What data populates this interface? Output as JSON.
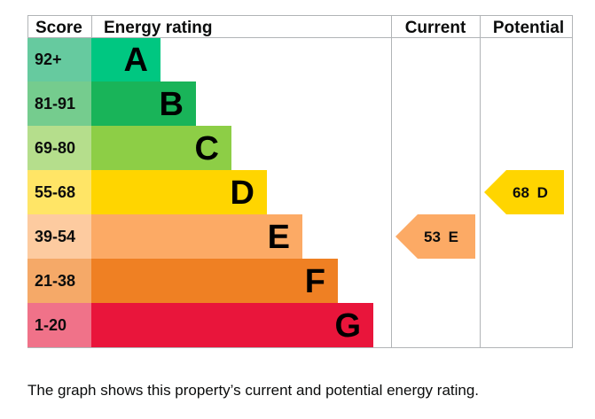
{
  "header": {
    "score_label": "Score",
    "rating_label": "Energy rating",
    "current_label": "Current",
    "potential_label": "Potential"
  },
  "bands": [
    {
      "letter": "A",
      "score": "92+",
      "color": "#00c781",
      "score_bg": "#66ca9f"
    },
    {
      "letter": "B",
      "score": "81-91",
      "color": "#19b459",
      "score_bg": "#75cc8e"
    },
    {
      "letter": "C",
      "score": "69-80",
      "color": "#8dce46",
      "score_bg": "#b5de8c"
    },
    {
      "letter": "D",
      "score": "55-68",
      "color": "#ffd500",
      "score_bg": "#ffe566"
    },
    {
      "letter": "E",
      "score": "39-54",
      "color": "#fcaa65",
      "score_bg": "#fdcba0"
    },
    {
      "letter": "F",
      "score": "21-38",
      "color": "#ef8023",
      "score_bg": "#f5a968"
    },
    {
      "letter": "G",
      "score": "1-20",
      "color": "#e9153b",
      "score_bg": "#f07289"
    }
  ],
  "chart_data": {
    "type": "bar",
    "categories": [
      "A",
      "B",
      "C",
      "D",
      "E",
      "F",
      "G"
    ],
    "score_ranges": [
      "92+",
      "81-91",
      "69-80",
      "55-68",
      "39-54",
      "21-38",
      "1-20"
    ],
    "current": {
      "value": 53,
      "band": "E",
      "label": "53 E",
      "color": "#fcaa65"
    },
    "potential": {
      "value": 68,
      "band": "D",
      "label": "68 D",
      "color": "#ffd500"
    }
  },
  "caption": "The graph shows this property’s current and potential energy rating."
}
